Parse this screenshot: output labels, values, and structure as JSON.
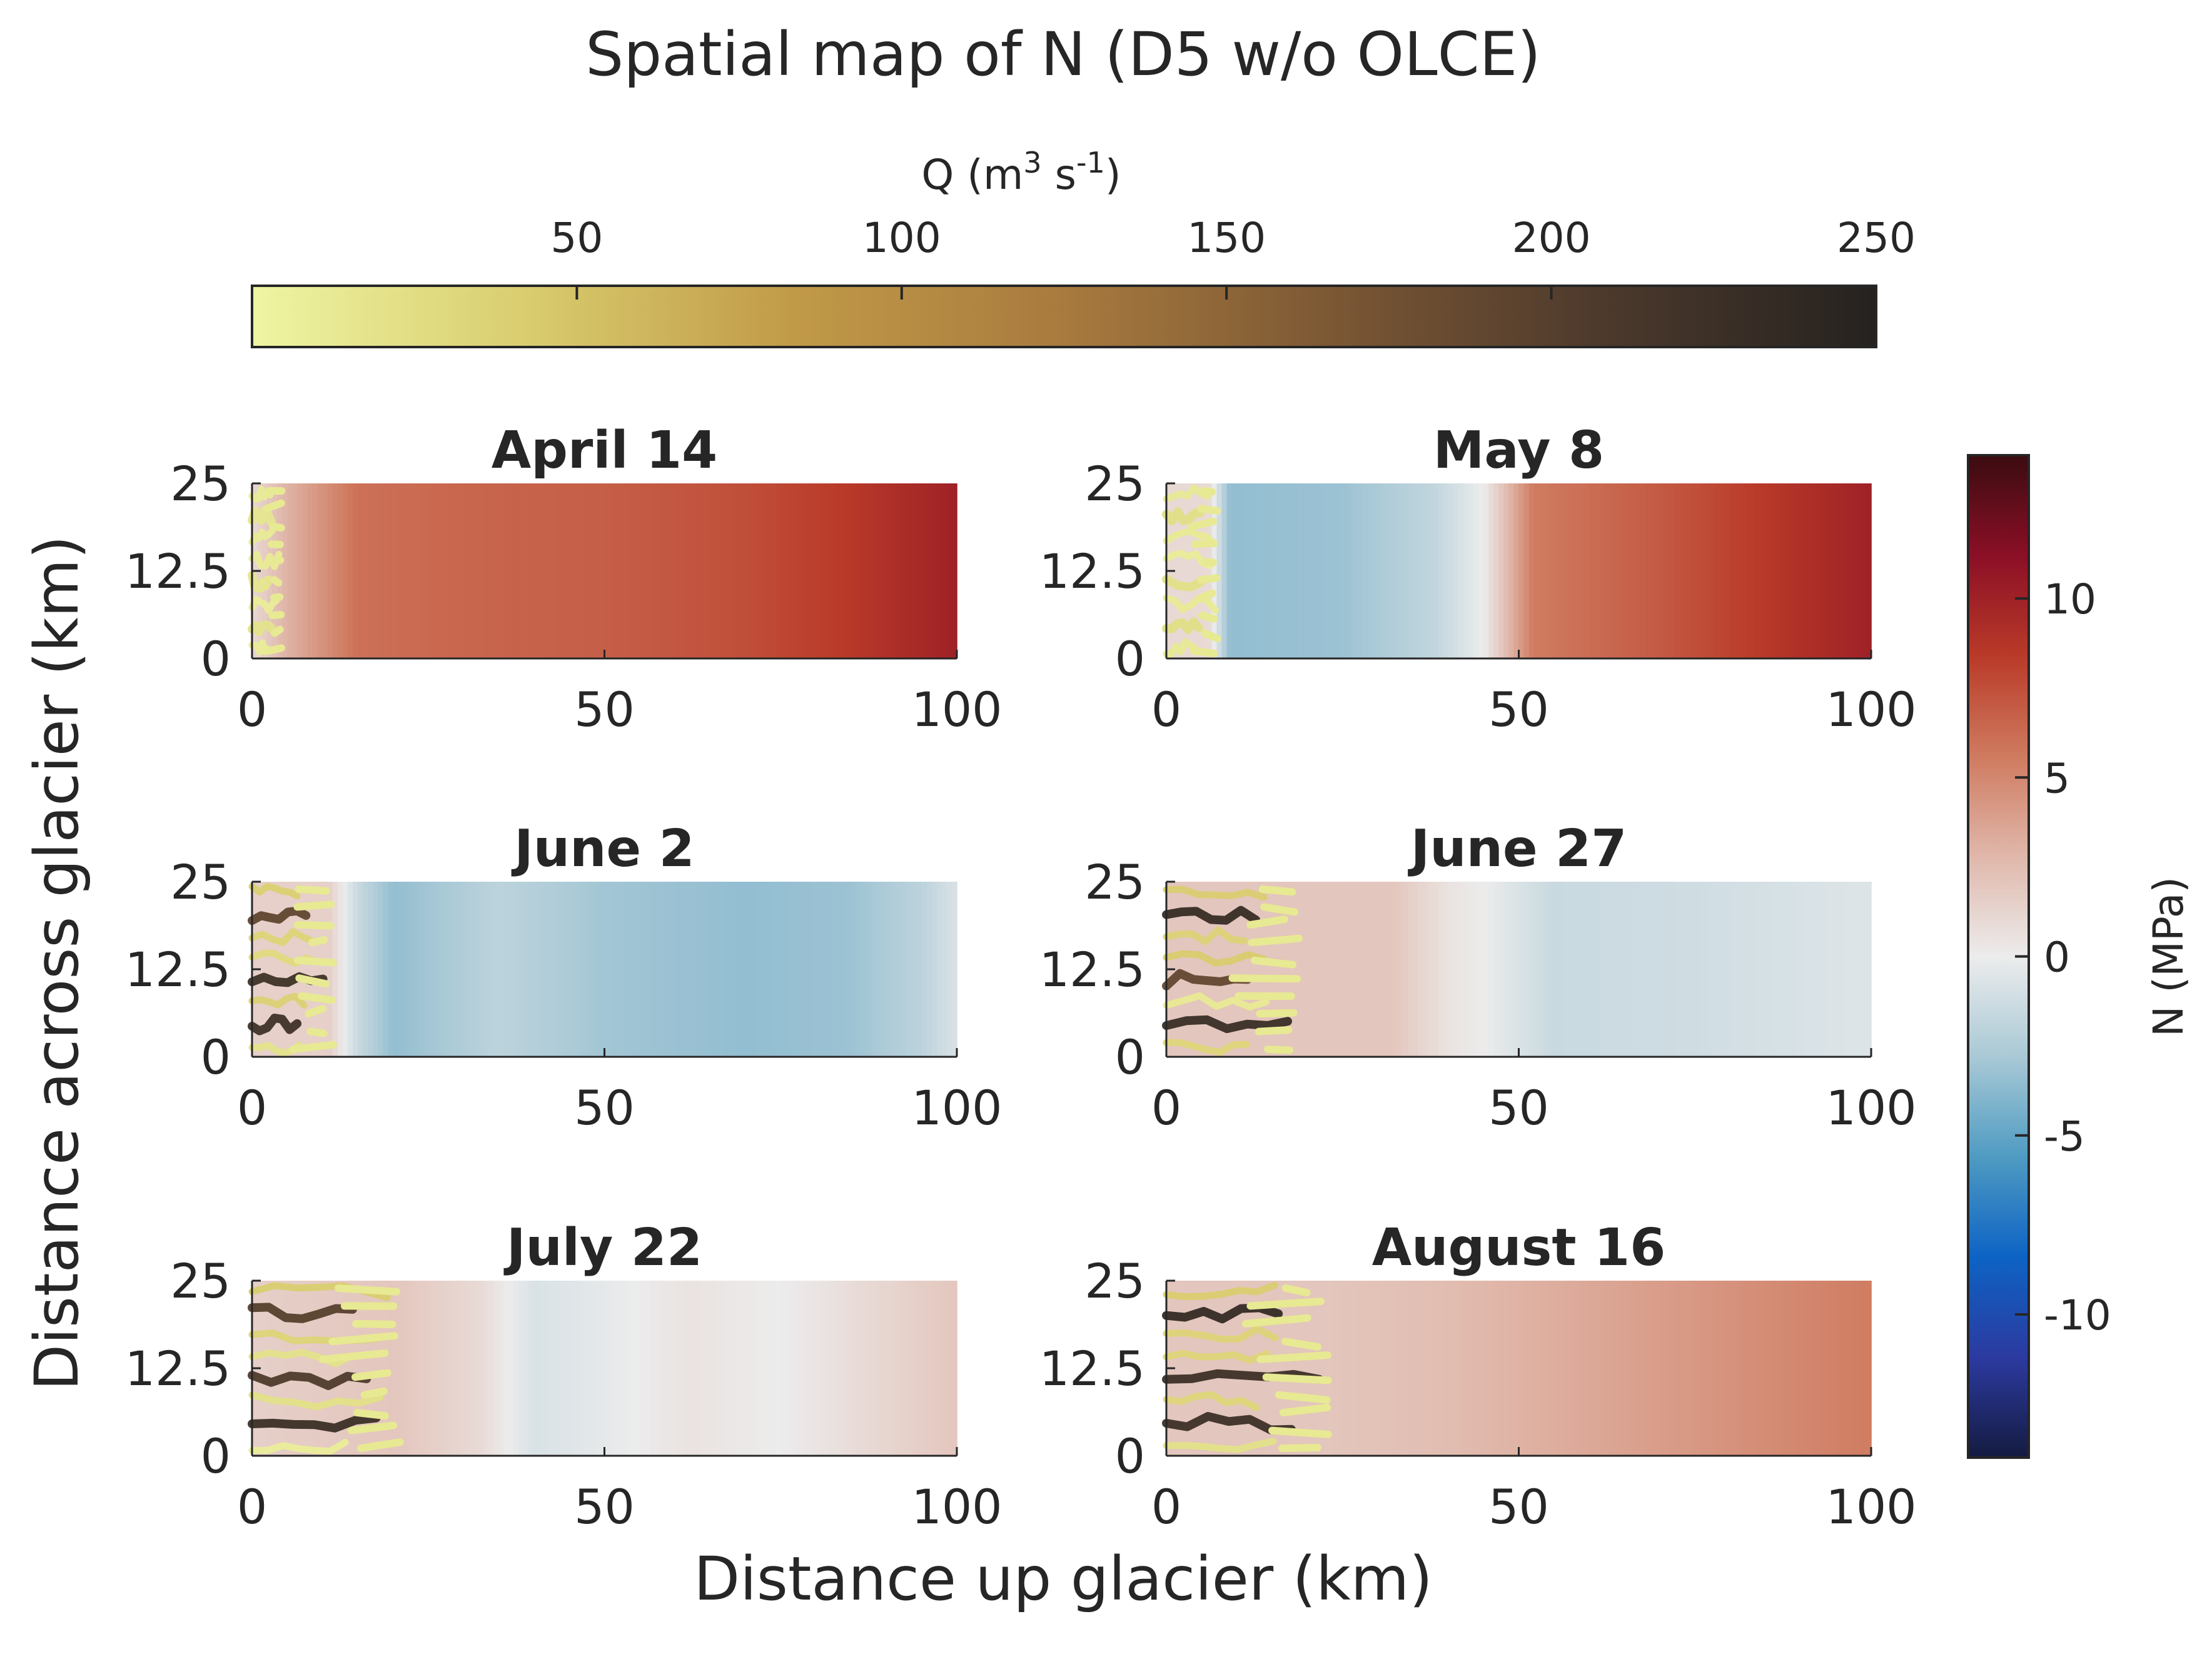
{
  "figure": {
    "title": "Spatial map of N (D5 w/o OLCE)",
    "xlabel": "Distance up glacier (km)",
    "ylabel": "Distance across glacier (km)"
  },
  "colorbar_q": {
    "label_main": "Q (m",
    "label_sup1": "3",
    "label_mid": " s",
    "label_sup2": "-1",
    "label_end": ")",
    "range": [
      0,
      250
    ],
    "ticks": [
      "50",
      "100",
      "150",
      "200",
      "250"
    ],
    "tick_values": [
      50,
      100,
      150,
      200,
      250
    ],
    "colors": [
      "#eef5a3",
      "#d9cd6f",
      "#c19a48",
      "#a87a3e",
      "#7b5734",
      "#4c392c",
      "#25221f"
    ]
  },
  "colorbar_n": {
    "label": "N (MPa)",
    "range": [
      -14,
      14
    ],
    "ticks": [
      "-10",
      "-5",
      "0",
      "5",
      "10"
    ],
    "tick_values": [
      -10,
      -5,
      0,
      5,
      10
    ],
    "colors": [
      "#141b40",
      "#2c3aa0",
      "#0d63c4",
      "#4f9bc2",
      "#a9c9d6",
      "#ececec",
      "#e0b7aa",
      "#cf7a5f",
      "#b93a28",
      "#8b0f26",
      "#3a0c10"
    ]
  },
  "chart_data": [
    {
      "type": "heatmap",
      "title": "April 14",
      "x_ticks": [
        "0",
        "50",
        "100"
      ],
      "y_ticks": [
        "0",
        "12.5",
        "25"
      ],
      "xlim": [
        0,
        100
      ],
      "ylim": [
        0,
        25
      ],
      "n_profile": [
        [
          0,
          1.0
        ],
        [
          5,
          3.0
        ],
        [
          15,
          6.0
        ],
        [
          30,
          6.5
        ],
        [
          50,
          6.8
        ],
        [
          70,
          7.5
        ],
        [
          85,
          8.5
        ],
        [
          100,
          10.0
        ]
      ],
      "channel_extent_km": 4,
      "channel_q_max": 20
    },
    {
      "type": "heatmap",
      "title": "May 8",
      "x_ticks": [
        "0",
        "50",
        "100"
      ],
      "y_ticks": [
        "0",
        "12.5",
        "25"
      ],
      "xlim": [
        0,
        100
      ],
      "ylim": [
        0,
        25
      ],
      "n_profile": [
        [
          0,
          1.0
        ],
        [
          6,
          1.0
        ],
        [
          9,
          -3.5
        ],
        [
          25,
          -3.2
        ],
        [
          38,
          -1.8
        ],
        [
          45,
          0
        ],
        [
          52,
          5.5
        ],
        [
          70,
          7.0
        ],
        [
          85,
          8.5
        ],
        [
          100,
          10.0
        ]
      ],
      "channel_extent_km": 7,
      "channel_q_max": 25
    },
    {
      "type": "heatmap",
      "title": "June 2",
      "x_ticks": [
        "0",
        "50",
        "100"
      ],
      "y_ticks": [
        "0",
        "12.5",
        "25"
      ],
      "xlim": [
        0,
        100
      ],
      "ylim": [
        0,
        25
      ],
      "n_profile": [
        [
          0,
          1.5
        ],
        [
          11,
          1.5
        ],
        [
          15,
          -1.5
        ],
        [
          20,
          -3.5
        ],
        [
          35,
          -2.0
        ],
        [
          50,
          -3.0
        ],
        [
          70,
          -3.5
        ],
        [
          85,
          -3.2
        ],
        [
          95,
          -2.0
        ],
        [
          100,
          -0.8
        ]
      ],
      "channel_extent_km": 11,
      "channel_q_max": 240
    },
    {
      "type": "heatmap",
      "title": "June 27",
      "x_ticks": [
        "0",
        "50",
        "100"
      ],
      "y_ticks": [
        "0",
        "12.5",
        "25"
      ],
      "xlim": [
        0,
        100
      ],
      "ylim": [
        0,
        25
      ],
      "n_profile": [
        [
          0,
          2.0
        ],
        [
          18,
          2.0
        ],
        [
          32,
          2.0
        ],
        [
          40,
          0.5
        ],
        [
          45,
          0
        ],
        [
          55,
          -1.5
        ],
        [
          75,
          -1.2
        ],
        [
          100,
          -0.6
        ]
      ],
      "channel_extent_km": 18,
      "channel_q_max": 250
    },
    {
      "type": "heatmap",
      "title": "July 22",
      "x_ticks": [
        "0",
        "50",
        "100"
      ],
      "y_ticks": [
        "0",
        "12.5",
        "25"
      ],
      "xlim": [
        0,
        100
      ],
      "ylim": [
        0,
        25
      ],
      "n_profile": [
        [
          0,
          1.5
        ],
        [
          20,
          2.0
        ],
        [
          32,
          1.0
        ],
        [
          40,
          -0.8
        ],
        [
          50,
          -0.3
        ],
        [
          62,
          0.5
        ],
        [
          75,
          0
        ],
        [
          100,
          2.0
        ]
      ],
      "channel_extent_km": 20,
      "channel_q_max": 250
    },
    {
      "type": "heatmap",
      "title": "August 16",
      "x_ticks": [
        "0",
        "50",
        "100"
      ],
      "y_ticks": [
        "0",
        "12.5",
        "25"
      ],
      "xlim": [
        0,
        100
      ],
      "ylim": [
        0,
        25
      ],
      "n_profile": [
        [
          0,
          2.0
        ],
        [
          22,
          2.0
        ],
        [
          40,
          2.5
        ],
        [
          60,
          3.5
        ],
        [
          80,
          4.5
        ],
        [
          100,
          5.5
        ]
      ],
      "channel_extent_km": 22,
      "channel_q_max": 250
    }
  ]
}
